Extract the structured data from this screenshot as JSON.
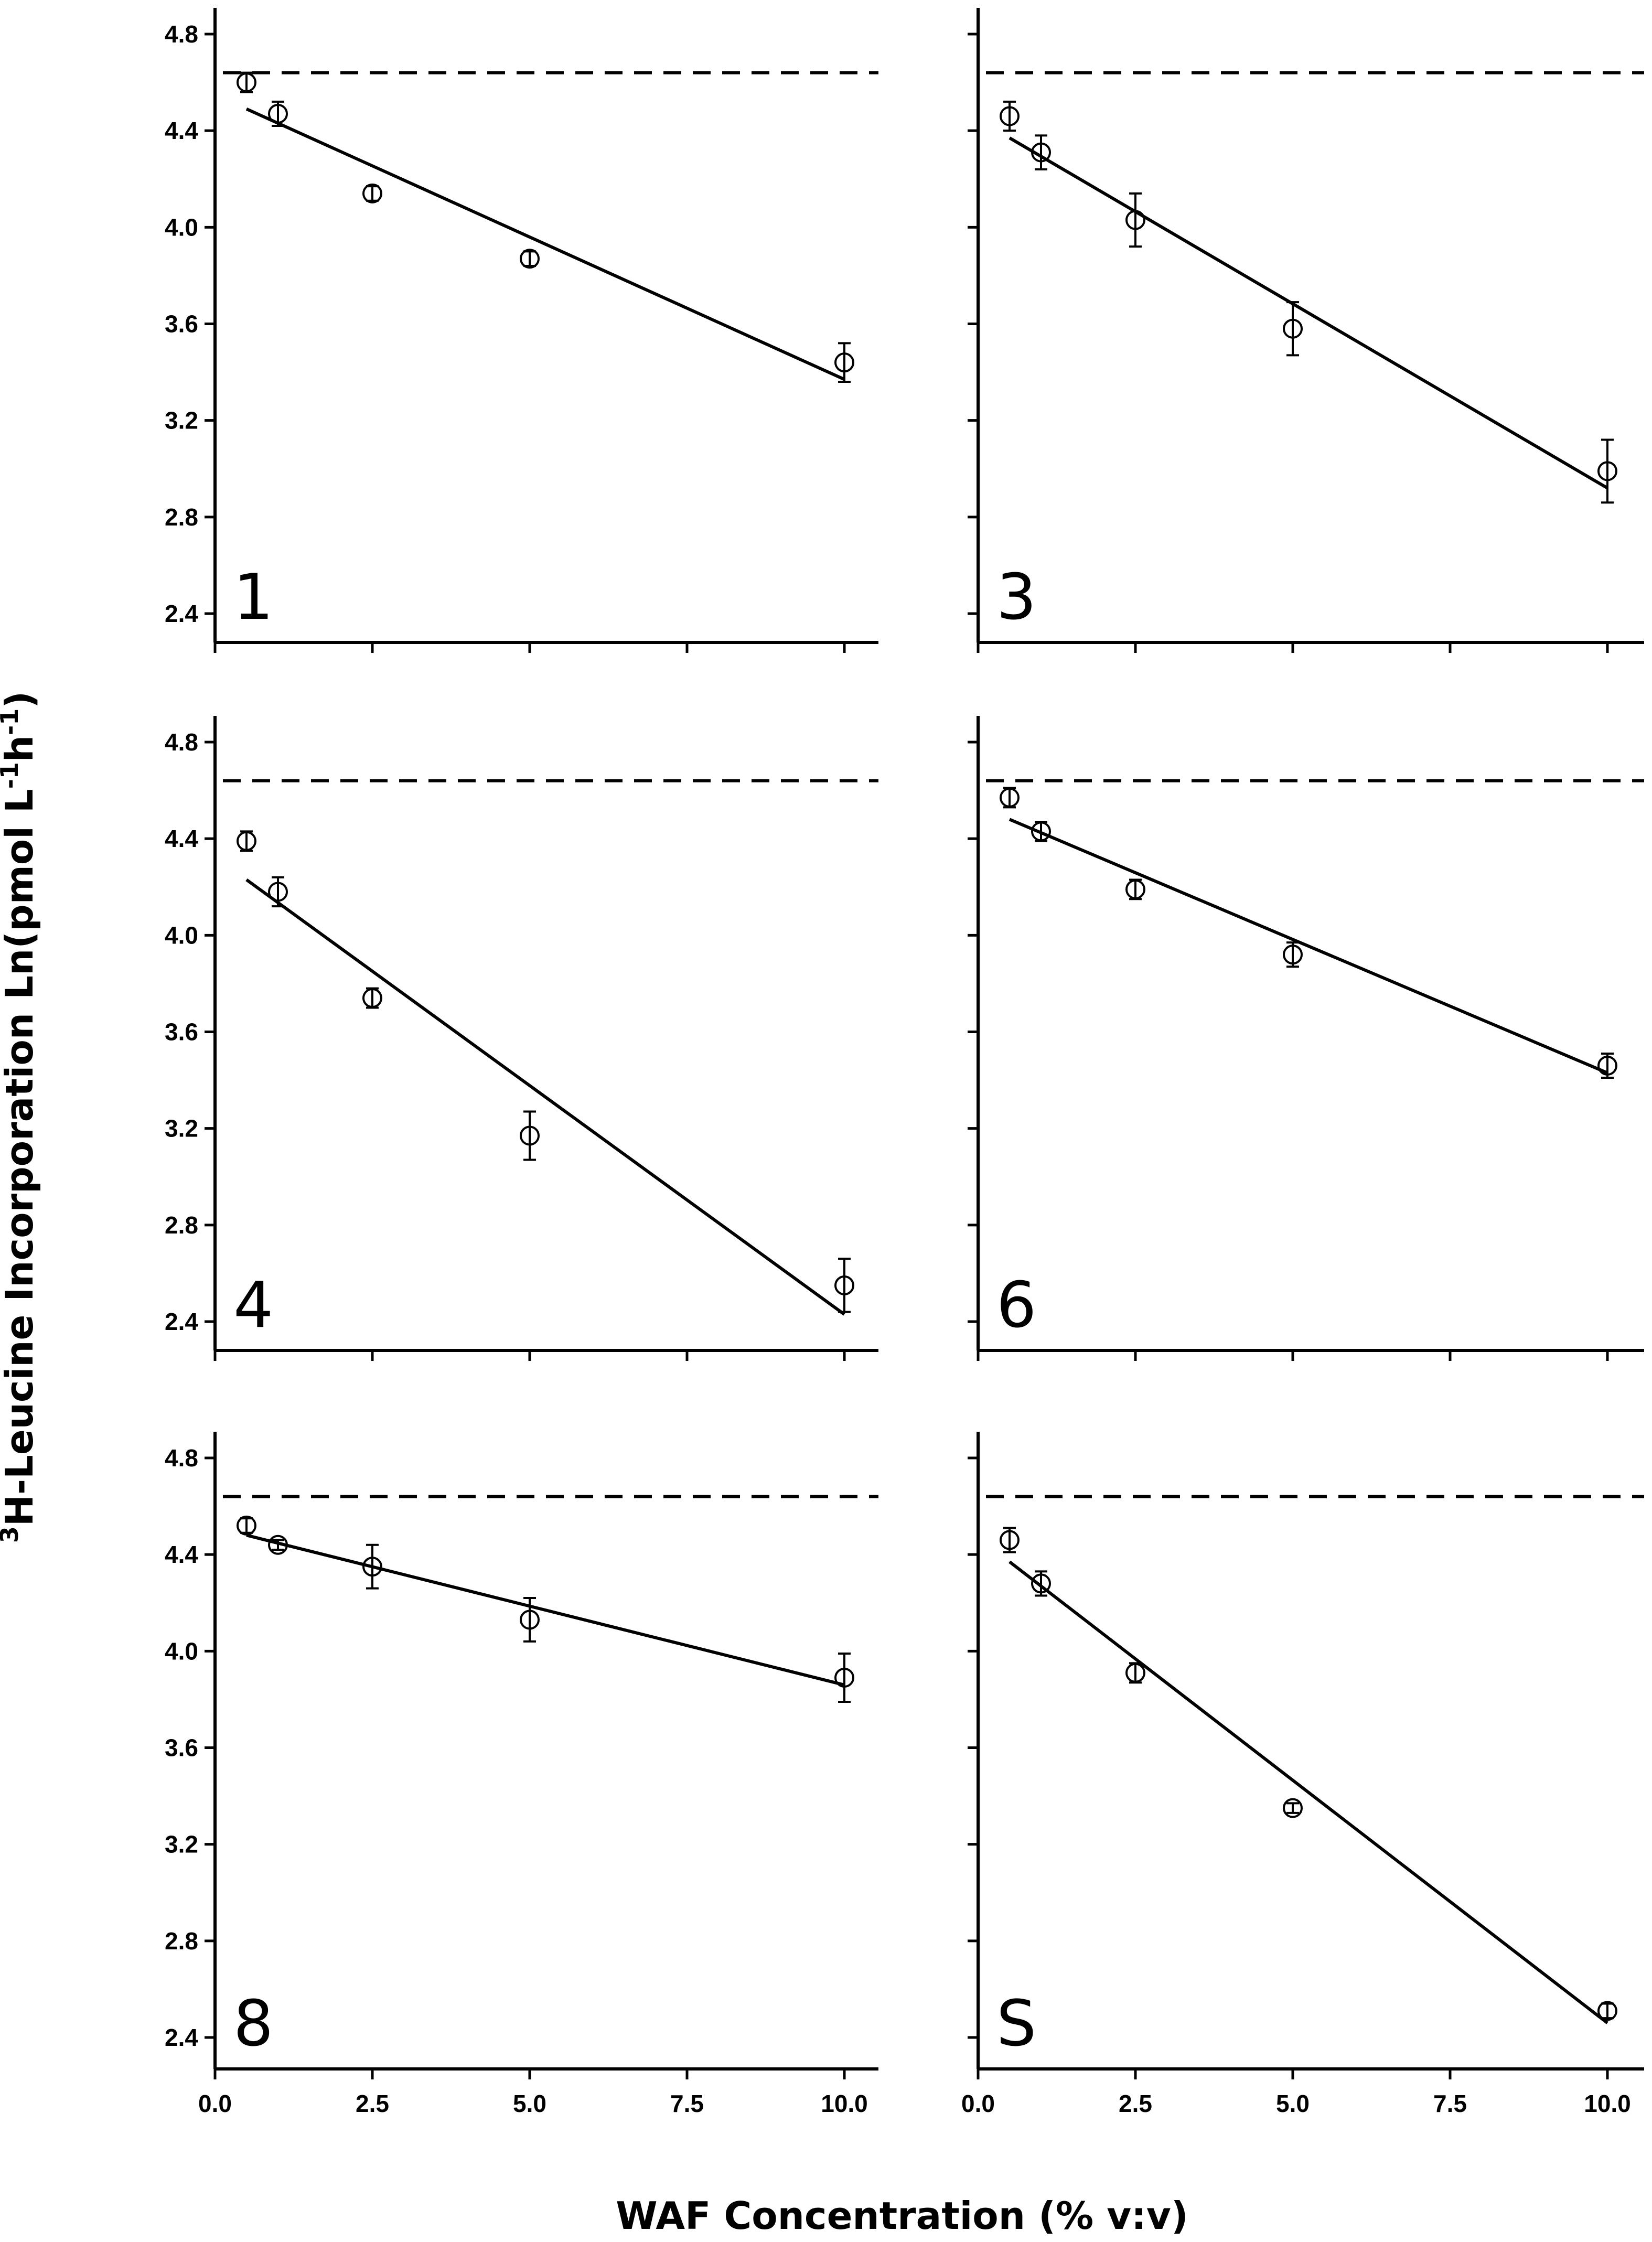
{
  "chart_data": {
    "type": "scatter",
    "layout": "3x2 grid of panels",
    "xlabel": "WAF Concentration (% v:v)",
    "ylabel": {
      "sup_prefix": "3",
      "main": "H-Leucine Incorporation Ln(pmol L",
      "sup1": "-1",
      "mid": "h",
      "sup2": "-1",
      "end": ")"
    },
    "xlim": [
      0,
      10.5
    ],
    "ylim": [
      2.32,
      4.9
    ],
    "xticks": [
      0.0,
      2.5,
      5.0,
      7.5,
      10.0
    ],
    "xtick_labels": [
      "0.0",
      "2.5",
      "5.0",
      "7.5",
      "10.0"
    ],
    "yticks": [
      2.4,
      2.8,
      3.2,
      3.6,
      4.0,
      4.4,
      4.8
    ],
    "ytick_labels": [
      "2.4",
      "2.8",
      "3.2",
      "3.6",
      "4.0",
      "4.4",
      "4.8"
    ],
    "reference_line": {
      "y": 4.64,
      "style": "dashed"
    },
    "panels": [
      {
        "label": "1",
        "x": [
          0.5,
          1.0,
          2.5,
          5.0,
          10.0
        ],
        "y": [
          4.6,
          4.47,
          4.14,
          3.87,
          3.44
        ],
        "error": [
          0.04,
          0.05,
          0.03,
          0.03,
          0.08
        ],
        "fit": [
          [
            0.5,
            4.49
          ],
          [
            10.0,
            3.37
          ]
        ]
      },
      {
        "label": "3",
        "x": [
          0.5,
          1.0,
          2.5,
          5.0,
          10.0
        ],
        "y": [
          4.46,
          4.31,
          4.03,
          3.58,
          2.99
        ],
        "error": [
          0.06,
          0.07,
          0.11,
          0.11,
          0.13
        ],
        "fit": [
          [
            0.5,
            4.37
          ],
          [
            10.0,
            2.92
          ]
        ]
      },
      {
        "label": "4",
        "x": [
          0.5,
          1.0,
          2.5,
          5.0,
          10.0
        ],
        "y": [
          4.39,
          4.18,
          3.74,
          3.17,
          2.55
        ],
        "error": [
          0.04,
          0.06,
          0.04,
          0.1,
          0.11
        ],
        "fit": [
          [
            0.5,
            4.23
          ],
          [
            10.0,
            2.43
          ]
        ]
      },
      {
        "label": "6",
        "x": [
          0.5,
          1.0,
          2.5,
          5.0,
          10.0
        ],
        "y": [
          4.57,
          4.43,
          4.19,
          3.92,
          3.46
        ],
        "error": [
          0.04,
          0.04,
          0.04,
          0.05,
          0.05
        ],
        "fit": [
          [
            0.5,
            4.48
          ],
          [
            10.0,
            3.43
          ]
        ]
      },
      {
        "label": "8",
        "x": [
          0.5,
          1.0,
          2.5,
          5.0,
          10.0
        ],
        "y": [
          4.52,
          4.44,
          4.35,
          4.13,
          3.89
        ],
        "error": [
          0.03,
          0.02,
          0.09,
          0.09,
          0.1
        ],
        "fit": [
          [
            0.5,
            4.48
          ],
          [
            10.0,
            3.86
          ]
        ]
      },
      {
        "label": "S",
        "x": [
          0.5,
          1.0,
          2.5,
          5.0,
          10.0
        ],
        "y": [
          4.46,
          4.28,
          3.91,
          3.35,
          2.51
        ],
        "error": [
          0.05,
          0.05,
          0.04,
          0.02,
          0.03
        ],
        "fit": [
          [
            0.5,
            4.37
          ],
          [
            10.0,
            2.46
          ]
        ]
      }
    ]
  }
}
